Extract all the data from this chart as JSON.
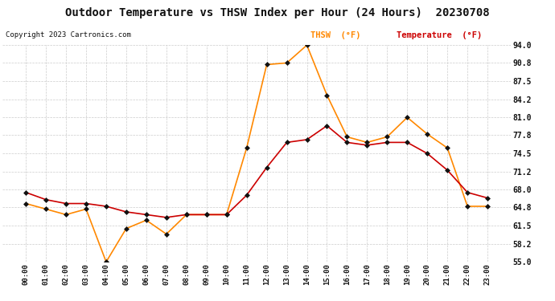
{
  "title": "Outdoor Temperature vs THSW Index per Hour (24 Hours)  20230708",
  "copyright": "Copyright 2023 Cartronics.com",
  "hours": [
    "00:00",
    "01:00",
    "02:00",
    "03:00",
    "04:00",
    "05:00",
    "06:00",
    "07:00",
    "08:00",
    "09:00",
    "10:00",
    "11:00",
    "12:00",
    "13:00",
    "14:00",
    "15:00",
    "16:00",
    "17:00",
    "18:00",
    "19:00",
    "20:00",
    "21:00",
    "22:00",
    "23:00"
  ],
  "temperature": [
    67.5,
    66.2,
    65.5,
    65.5,
    65.0,
    64.0,
    63.5,
    63.0,
    63.5,
    63.5,
    63.5,
    67.0,
    72.0,
    76.5,
    77.0,
    79.5,
    76.5,
    76.0,
    76.5,
    76.5,
    74.5,
    71.5,
    67.5,
    66.5
  ],
  "thsw": [
    65.5,
    64.5,
    63.5,
    64.5,
    55.0,
    61.0,
    62.5,
    60.0,
    63.5,
    63.5,
    63.5,
    75.5,
    90.5,
    90.8,
    94.0,
    85.0,
    77.5,
    76.5,
    77.5,
    81.0,
    78.0,
    75.5,
    65.0,
    65.0
  ],
  "ylim": [
    55.0,
    94.0
  ],
  "yticks": [
    55.0,
    58.2,
    61.5,
    64.8,
    68.0,
    71.2,
    74.5,
    77.8,
    81.0,
    84.2,
    87.5,
    90.8,
    94.0
  ],
  "temp_color": "#cc0000",
  "thsw_color": "#ff8800",
  "marker_color": "#111111",
  "bg_color": "#ffffff",
  "grid_color": "#cccccc",
  "title_color": "#111111",
  "copyright_color": "#111111",
  "legend_thsw_color": "#ff8800",
  "legend_temp_color": "#cc0000"
}
